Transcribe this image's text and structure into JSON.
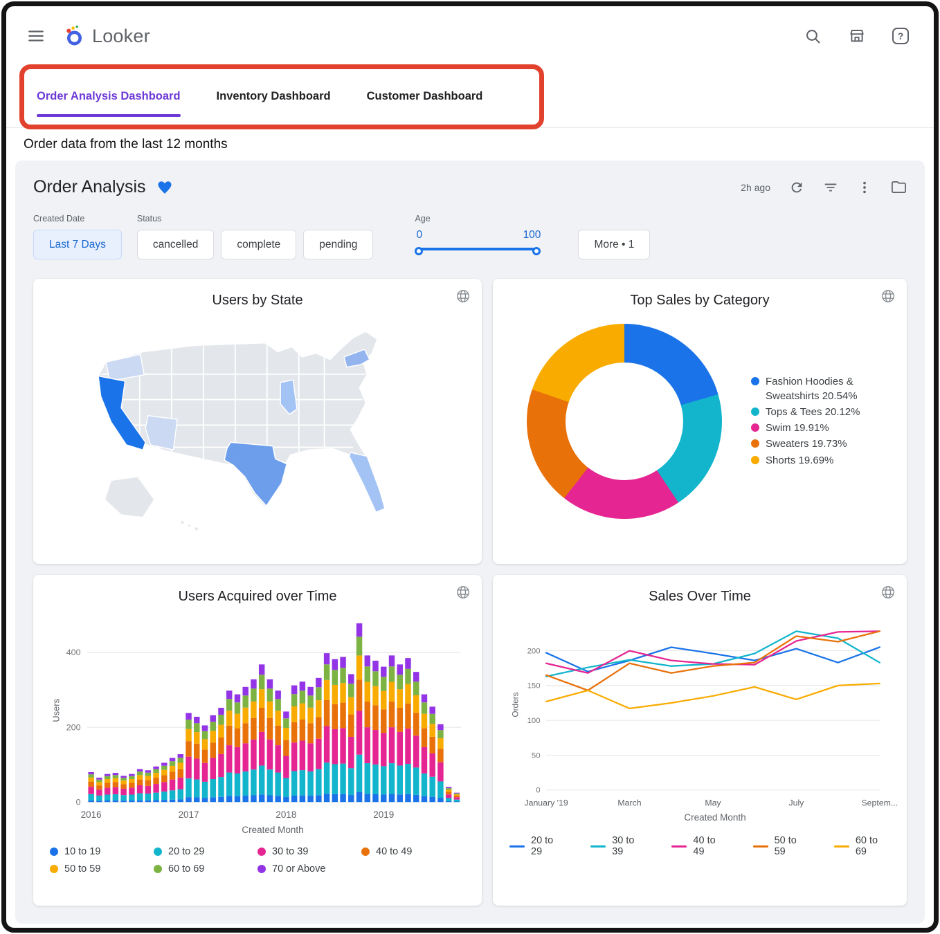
{
  "topbar": {
    "brand": "Looker",
    "help_glyph": "?"
  },
  "tabs": [
    {
      "label": "Order Analysis Dashboard",
      "active": true
    },
    {
      "label": "Inventory Dashboard",
      "active": false
    },
    {
      "label": "Customer Dashboard",
      "active": false
    }
  ],
  "page_note": "Order data from the last 12 months",
  "dashboard": {
    "title": "Order Analysis",
    "updated": "2h ago"
  },
  "filters": {
    "created_date_label": "Created Date",
    "created_date_value": "Last 7 Days",
    "status_label": "Status",
    "status_options": [
      "cancelled",
      "complete",
      "pending"
    ],
    "age_label": "Age",
    "age_min": "0",
    "age_max": "100",
    "more_label": "More • 1"
  },
  "colors": {
    "accent_blue": "#1a73e8",
    "active_tab_purple": "#6e3ad6",
    "annotation_red": "#e2422d",
    "logo_ring": "#4262e3",
    "logo_dots": [
      "#ea4335",
      "#fbbc04",
      "#34a853"
    ]
  },
  "chart_data": {
    "users_by_state": {
      "type": "map",
      "title": "Users by State",
      "region": "United States",
      "palette": {
        "base": "#e3e6ea",
        "high": "#1a73e8",
        "medium": "#6d9eeb",
        "ny": "#93b4ef",
        "light": "#a4c3f5",
        "pale": "#cbdaf2"
      },
      "states": [
        {
          "name": "California",
          "shade": "high"
        },
        {
          "name": "Texas",
          "shade": "medium"
        },
        {
          "name": "New York",
          "shade": "ny"
        },
        {
          "name": "Illinois",
          "shade": "light"
        },
        {
          "name": "Florida",
          "shade": "light"
        },
        {
          "name": "Arizona",
          "shade": "pale"
        },
        {
          "name": "Washington",
          "shade": "pale"
        }
      ]
    },
    "sales_by_category": {
      "type": "pie",
      "donut": true,
      "title": "Top Sales by Category",
      "slices": [
        {
          "label": "Fashion Hoodies & Sweatshirts",
          "value_pct": 20.54,
          "color": "#1a73e8",
          "legend_text": "Fashion Hoodies & Sweatshirts 20.54%"
        },
        {
          "label": "Tops & Tees",
          "value_pct": 20.12,
          "color": "#12b5cb",
          "legend_text": "Tops & Tees 20.12%"
        },
        {
          "label": "Swim",
          "value_pct": 19.91,
          "color": "#e52592",
          "legend_text": "Swim 19.91%"
        },
        {
          "label": "Sweaters",
          "value_pct": 19.73,
          "color": "#e8710a",
          "legend_text": "Sweaters 19.73%"
        },
        {
          "label": "Shorts",
          "value_pct": 19.69,
          "color": "#f9ab00",
          "legend_text": "Shorts 19.69%"
        }
      ],
      "legend_position": "right"
    },
    "users_acquired": {
      "type": "bar",
      "stacked": true,
      "title": "Users Acquired over Time",
      "xlabel": "Created Month",
      "ylabel": "Users",
      "ylim": [
        0,
        490
      ],
      "yticks": [
        0,
        200,
        400
      ],
      "grid": true,
      "xtick_positions": [
        0,
        12,
        24,
        36
      ],
      "xtick_labels": [
        "2016",
        "2017",
        "2018",
        "2019"
      ],
      "monthly_totals": [
        80,
        65,
        75,
        78,
        70,
        75,
        88,
        85,
        95,
        105,
        118,
        128,
        238,
        228,
        205,
        232,
        252,
        298,
        288,
        308,
        328,
        368,
        328,
        298,
        242,
        312,
        322,
        308,
        332,
        398,
        382,
        388,
        342,
        478,
        392,
        378,
        362,
        392,
        368,
        385,
        348,
        288,
        255,
        208,
        40,
        25
      ],
      "age_group_fractions": [
        {
          "name": "10 to 19",
          "color": "#1a73e8",
          "fraction": 0.055
        },
        {
          "name": "20 to 29",
          "color": "#12b5cb",
          "fraction": 0.21
        },
        {
          "name": "30 to 39",
          "color": "#e52592",
          "fraction": 0.245
        },
        {
          "name": "40 to 49",
          "color": "#e8710a",
          "fraction": 0.175
        },
        {
          "name": "50 to 59",
          "color": "#f9ab00",
          "fraction": 0.135
        },
        {
          "name": "60 to 69",
          "color": "#7cb342",
          "fraction": 0.105
        },
        {
          "name": "70 or Above",
          "color": "#9334e6",
          "fraction": 0.075
        }
      ],
      "legend_position": "bottom"
    },
    "sales_over_time": {
      "type": "line",
      "title": "Sales Over Time",
      "xlabel": "Created Month",
      "ylabel": "Orders",
      "ylim": [
        0,
        245
      ],
      "yticks": [
        0,
        50,
        100,
        150,
        200
      ],
      "grid": true,
      "xtick_positions": [
        0,
        2,
        4,
        6,
        8
      ],
      "xtick_labels": [
        "January '19",
        "March",
        "May",
        "July",
        "Septem..."
      ],
      "series": [
        {
          "name": "20 to 29",
          "color": "#1a73e8",
          "values": [
            197,
            170,
            186,
            205,
            196,
            186,
            203,
            183,
            205
          ]
        },
        {
          "name": "30 to 39",
          "color": "#12b5cb",
          "values": [
            163,
            176,
            187,
            178,
            181,
            196,
            228,
            218,
            183
          ]
        },
        {
          "name": "40 to 49",
          "color": "#e52592",
          "values": [
            182,
            168,
            200,
            186,
            181,
            180,
            214,
            227,
            228
          ]
        },
        {
          "name": "50 to 59",
          "color": "#e8710a",
          "values": [
            165,
            143,
            182,
            168,
            178,
            183,
            221,
            213,
            228
          ]
        },
        {
          "name": "60 to 69",
          "color": "#f9ab00",
          "values": [
            127,
            143,
            117,
            125,
            135,
            148,
            130,
            150,
            153
          ]
        }
      ],
      "legend_position": "bottom"
    }
  }
}
